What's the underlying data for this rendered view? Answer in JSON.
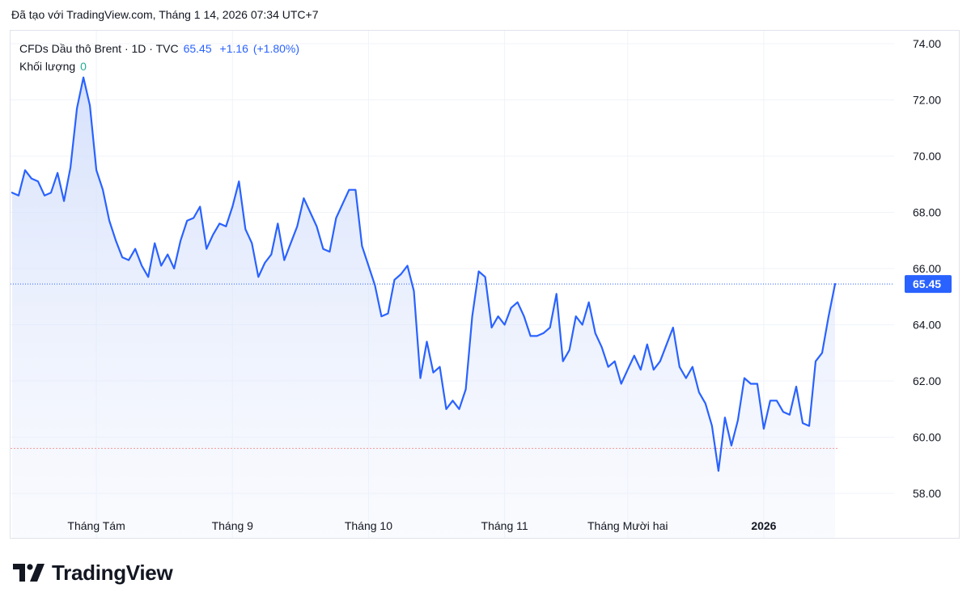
{
  "header": {
    "caption": "Đã tạo với TradingView.com, Tháng 1 14, 2026 07:34 UTC+7"
  },
  "legend": {
    "symbol": "CFDs Dầu thô Brent · 1D · TVC",
    "last": "65.45",
    "change": "+1.16",
    "change_pct": "(+1.80%)",
    "volume_label": "Khối lượng",
    "volume_value": "0"
  },
  "brand": {
    "name": "TradingView"
  },
  "colors": {
    "line": "#2962ff",
    "grid": "#f0f3fa",
    "fill_top": "#dbe4fb",
    "price_label_bg": "#2962ff",
    "ref_line": "#ef9a9a"
  },
  "chart_data": {
    "type": "area",
    "title": "",
    "xlabel": "",
    "ylabel": "",
    "ylim": [
      57.4,
      74.6
    ],
    "y_ticks": [
      "58.00",
      "60.00",
      "62.00",
      "64.00",
      "66.00",
      "68.00",
      "70.00",
      "72.00",
      "74.00"
    ],
    "x_ticks": [
      {
        "label": "Tháng Tám",
        "index": 13,
        "bold": false
      },
      {
        "label": "Tháng 9",
        "index": 34,
        "bold": false
      },
      {
        "label": "Tháng 10",
        "index": 55,
        "bold": false
      },
      {
        "label": "Tháng 11",
        "index": 76,
        "bold": false
      },
      {
        "label": "Tháng Mười hai",
        "index": 95,
        "bold": false
      },
      {
        "label": "2026",
        "index": 116,
        "bold": true
      }
    ],
    "last_price_label": "65.45",
    "last_price": 65.45,
    "reference_level": 59.6,
    "legend_position": "top-left",
    "grid": true,
    "series": [
      {
        "values": [
          68.7,
          68.6,
          69.5,
          69.2,
          69.1,
          68.6,
          68.7,
          69.4,
          68.4,
          69.6,
          71.7,
          72.8,
          71.8,
          69.5,
          68.8,
          67.7,
          67.0,
          66.4,
          66.3,
          66.7,
          66.1,
          65.7,
          66.9,
          66.1,
          66.5,
          66.0,
          67.0,
          67.7,
          67.8,
          68.2,
          66.7,
          67.2,
          67.6,
          67.5,
          68.2,
          69.1,
          67.4,
          66.9,
          65.7,
          66.2,
          66.5,
          67.6,
          66.3,
          66.9,
          67.5,
          68.5,
          68.0,
          67.5,
          66.7,
          66.6,
          67.8,
          68.3,
          68.8,
          68.8,
          66.8,
          66.1,
          65.4,
          64.3,
          64.4,
          65.6,
          65.8,
          66.1,
          65.2,
          62.1,
          63.4,
          62.3,
          62.5,
          61.0,
          61.3,
          61.0,
          61.7,
          64.3,
          65.9,
          65.7,
          63.9,
          64.3,
          64.0,
          64.6,
          64.8,
          64.3,
          63.6,
          63.6,
          63.7,
          63.9,
          65.1,
          62.7,
          63.1,
          64.3,
          64.0,
          64.8,
          63.7,
          63.2,
          62.5,
          62.7,
          61.9,
          62.4,
          62.9,
          62.4,
          63.3,
          62.4,
          62.7,
          63.3,
          63.9,
          62.5,
          62.1,
          62.5,
          61.6,
          61.2,
          60.4,
          58.8,
          60.7,
          59.7,
          60.6,
          62.1,
          61.9,
          61.9,
          60.3,
          61.3,
          61.3,
          60.9,
          60.8,
          61.8,
          60.5,
          60.4,
          62.7,
          63.0,
          64.3,
          65.45
        ]
      }
    ]
  }
}
